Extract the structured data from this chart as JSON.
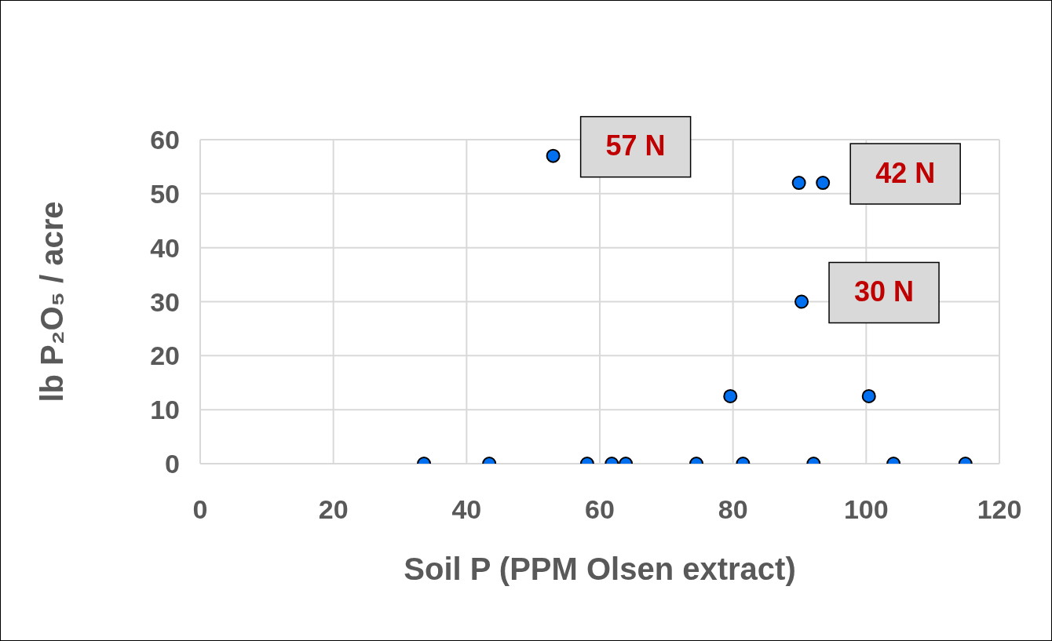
{
  "chart_data": {
    "type": "scatter",
    "xlabel": "Soil P (PPM Olsen extract)",
    "ylabel": "lb P₂O₅ / acre",
    "x": [
      33.6,
      43.4,
      58.1,
      61.8,
      63.9,
      74.5,
      79.6,
      81.5,
      89.9,
      93.5,
      90.3,
      92.1,
      100.4,
      104.1,
      114.9,
      53
    ],
    "values": [
      0,
      0,
      0,
      0,
      0,
      0,
      12.5,
      0,
      52,
      52,
      30,
      0,
      12.5,
      0,
      0,
      57
    ],
    "color": "#0070f0",
    "marker": "circle",
    "xlim": [
      0,
      120
    ],
    "xticks": [
      0,
      20,
      40,
      60,
      80,
      100,
      120
    ],
    "ylim": [
      0,
      60
    ],
    "yticks": [
      0,
      10,
      20,
      30,
      40,
      50,
      60
    ],
    "grid": true,
    "annotations": [
      {
        "text": "57 N",
        "x": 53,
        "y": 57
      },
      {
        "text": "42 N",
        "x": 93.5,
        "y": 52
      },
      {
        "text": "30 N",
        "x": 90.3,
        "y": 30
      }
    ]
  }
}
